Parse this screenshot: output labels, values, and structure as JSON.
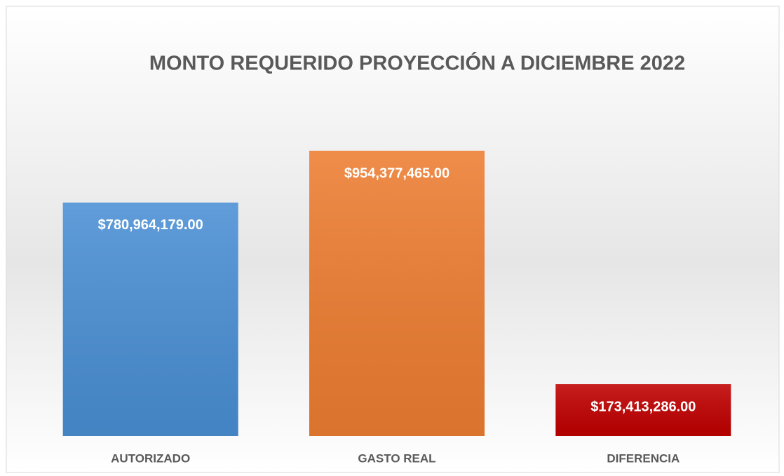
{
  "chart_data": {
    "type": "bar",
    "title": "MONTO REQUERIDO PROYECCIÓN A DICIEMBRE 2022",
    "categories": [
      "AUTORIZADO",
      "GASTO REAL",
      "DIFERENCIA"
    ],
    "values": [
      780964179,
      954377465,
      173413286
    ],
    "value_labels": [
      "$780,964,179.00",
      "$954,377,465.00",
      "$173,413,286.00"
    ],
    "colors": [
      "#4a8fd4",
      "#ed7d31",
      "#c00000"
    ]
  }
}
